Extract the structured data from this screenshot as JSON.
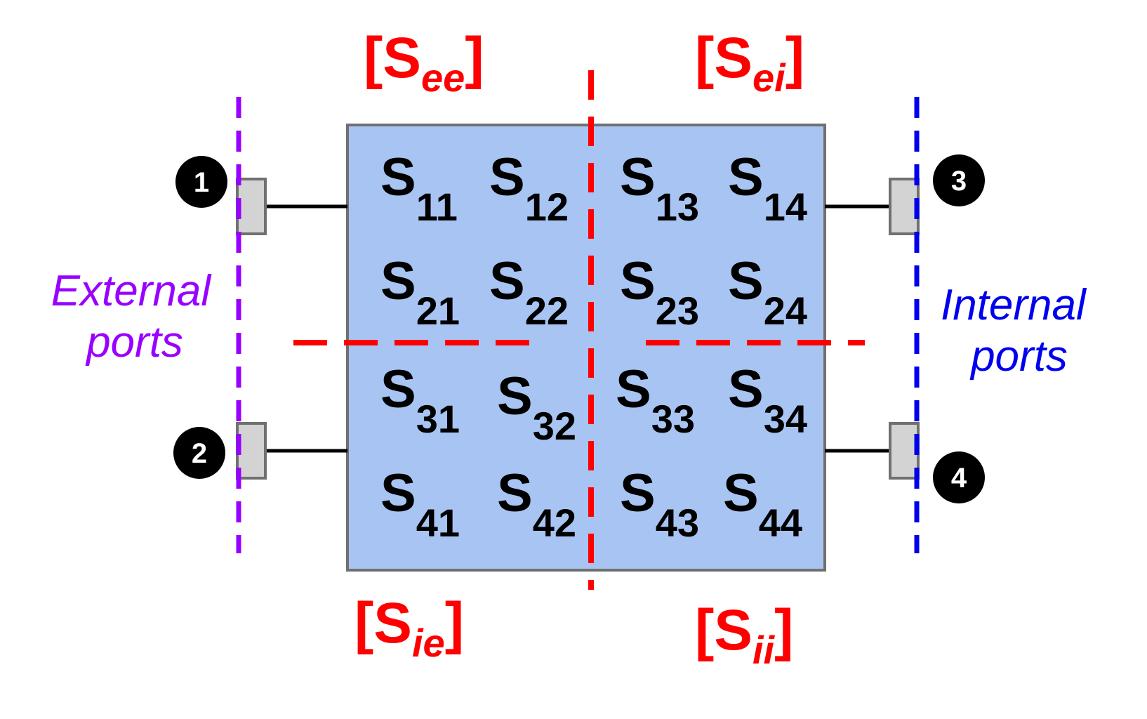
{
  "diagram": {
    "block_labels": {
      "see": {
        "main": "[S",
        "sub": "ee",
        "close": "]"
      },
      "sei": {
        "main": "[S",
        "sub": "ei",
        "close": "]"
      },
      "sie": {
        "main": "[S",
        "sub": "ie",
        "close": "]"
      },
      "sii": {
        "main": "[S",
        "sub": "ii",
        "close": "]"
      }
    },
    "matrix": [
      [
        {
          "s": "S",
          "sub": "11"
        },
        {
          "s": "S",
          "sub": "12"
        },
        {
          "s": "S",
          "sub": "13"
        },
        {
          "s": "S",
          "sub": "14"
        }
      ],
      [
        {
          "s": "S",
          "sub": "21"
        },
        {
          "s": "S",
          "sub": "22"
        },
        {
          "s": "S",
          "sub": "23"
        },
        {
          "s": "S",
          "sub": "24"
        }
      ],
      [
        {
          "s": "S",
          "sub": "31"
        },
        {
          "s": "S",
          "sub": "32"
        },
        {
          "s": "S",
          "sub": "33"
        },
        {
          "s": "S",
          "sub": "34"
        }
      ],
      [
        {
          "s": "S",
          "sub": "41"
        },
        {
          "s": "S",
          "sub": "42"
        },
        {
          "s": "S",
          "sub": "43"
        },
        {
          "s": "S",
          "sub": "44"
        }
      ]
    ],
    "ports": {
      "p1": "1",
      "p2": "2",
      "p3": "3",
      "p4": "4"
    },
    "external_label": {
      "line1": "External",
      "line2": "ports"
    },
    "internal_label": {
      "line1": "Internal",
      "line2": "ports"
    },
    "colors": {
      "box_fill": "#a8c4f2",
      "box_stroke": "#707070",
      "partition": "#ff0000",
      "external": "#9900ff",
      "internal": "#0000ee",
      "port_fill": "#d3d3d3"
    }
  }
}
